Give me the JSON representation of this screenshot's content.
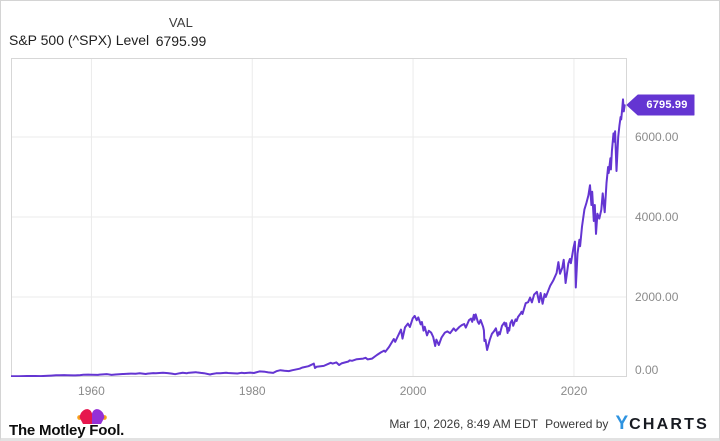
{
  "header": {
    "title": "S&P 500 (^SPX) Level",
    "col_label": "VAL",
    "value": "6795.99"
  },
  "chart_data": {
    "type": "line",
    "title": "S&P 500 (^SPX) Level",
    "xlabel": "",
    "ylabel": "",
    "xlim": [
      1950,
      2026.6
    ],
    "ylim": [
      0,
      7975
    ],
    "grid": true,
    "legend_position": "none",
    "x_ticks": [
      1960,
      1980,
      2000,
      2020
    ],
    "y_ticks": [
      {
        "value": 6000,
        "label": "6000.00"
      },
      {
        "value": 4000,
        "label": "4000.00"
      },
      {
        "value": 2000,
        "label": "2000.00"
      },
      {
        "value": 0,
        "label": "0.00"
      }
    ],
    "last_value_label": "6795.99",
    "series": [
      {
        "name": "S&P 500 (^SPX) Level",
        "points": [
          [
            1950,
            17
          ],
          [
            1951,
            21
          ],
          [
            1952,
            24
          ],
          [
            1952.6,
            25
          ],
          [
            1953,
            26
          ],
          [
            1953.7,
            23
          ],
          [
            1954,
            26
          ],
          [
            1954.6,
            31
          ],
          [
            1955,
            36
          ],
          [
            1955.6,
            42
          ],
          [
            1956,
            44
          ],
          [
            1956.6,
            48
          ],
          [
            1957,
            45
          ],
          [
            1957.75,
            39
          ],
          [
            1958,
            41
          ],
          [
            1958.6,
            47
          ],
          [
            1959,
            55
          ],
          [
            1959.6,
            59
          ],
          [
            1960,
            58
          ],
          [
            1960.8,
            53
          ],
          [
            1961,
            59
          ],
          [
            1961.9,
            72
          ],
          [
            1962,
            69
          ],
          [
            1962.5,
            53
          ],
          [
            1963,
            63
          ],
          [
            1963.9,
            75
          ],
          [
            1964,
            76
          ],
          [
            1964.9,
            84
          ],
          [
            1965,
            85
          ],
          [
            1965.5,
            81
          ],
          [
            1966,
            93
          ],
          [
            1966.75,
            74
          ],
          [
            1967,
            84
          ],
          [
            1967.7,
            97
          ],
          [
            1968,
            92
          ],
          [
            1968.9,
            108
          ],
          [
            1969.5,
            97
          ],
          [
            1970,
            86
          ],
          [
            1970.4,
            70
          ],
          [
            1971,
            95
          ],
          [
            1971.35,
            104
          ],
          [
            1971.85,
            92
          ],
          [
            1972,
            102
          ],
          [
            1972.95,
            119
          ],
          [
            1973.1,
            116
          ],
          [
            1973.6,
            102
          ],
          [
            1974,
            94
          ],
          [
            1974.75,
            63
          ],
          [
            1975,
            75
          ],
          [
            1975.5,
            92
          ],
          [
            1976,
            94
          ],
          [
            1976.75,
            105
          ],
          [
            1977,
            100
          ],
          [
            1978.15,
            87
          ],
          [
            1978.65,
            105
          ],
          [
            1979,
            97
          ],
          [
            1979.75,
            110
          ],
          [
            1980.2,
            100
          ],
          [
            1980.9,
            140
          ],
          [
            1981.6,
            130
          ],
          [
            1982,
            115
          ],
          [
            1982.6,
            103
          ],
          [
            1983,
            145
          ],
          [
            1983.5,
            170
          ],
          [
            1984,
            157
          ],
          [
            1984.55,
            148
          ],
          [
            1985,
            170
          ],
          [
            1985.9,
            207
          ],
          [
            1986.2,
            235
          ],
          [
            1987,
            270
          ],
          [
            1987.65,
            336
          ],
          [
            1987.8,
            225
          ],
          [
            1988,
            255
          ],
          [
            1988.9,
            278
          ],
          [
            1989.75,
            355
          ],
          [
            1990,
            335
          ],
          [
            1990.45,
            365
          ],
          [
            1990.8,
            300
          ],
          [
            1991.1,
            340
          ],
          [
            1991.95,
            388
          ],
          [
            1992.1,
            415
          ],
          [
            1992.4,
            405
          ],
          [
            1993,
            445
          ],
          [
            1993.8,
            460
          ],
          [
            1994.1,
            480
          ],
          [
            1994.35,
            440
          ],
          [
            1994.9,
            460
          ],
          [
            1995.5,
            550
          ],
          [
            1996,
            615
          ],
          [
            1996.4,
            660
          ],
          [
            1996.55,
            630
          ],
          [
            1997,
            750
          ],
          [
            1997.6,
            950
          ],
          [
            1997.78,
            880
          ],
          [
            1998,
            975
          ],
          [
            1998.5,
            1186
          ],
          [
            1998.68,
            960
          ],
          [
            1999,
            1240
          ],
          [
            1999.35,
            1335
          ],
          [
            1999.6,
            1250
          ],
          [
            1999.95,
            1465
          ],
          [
            2000.2,
            1527
          ],
          [
            2000.45,
            1420
          ],
          [
            2000.65,
            1490
          ],
          [
            2000.95,
            1315
          ],
          [
            2001.1,
            1375
          ],
          [
            2001.3,
            1160
          ],
          [
            2001.45,
            1255
          ],
          [
            2001.73,
            1040
          ],
          [
            2001.95,
            1155
          ],
          [
            2002.25,
            1107
          ],
          [
            2002.5,
            1000
          ],
          [
            2002.75,
            776
          ],
          [
            2002.9,
            935
          ],
          [
            2003.2,
            800
          ],
          [
            2003.55,
            990
          ],
          [
            2003.95,
            1110
          ],
          [
            2004.25,
            1140
          ],
          [
            2004.6,
            1095
          ],
          [
            2005.05,
            1215
          ],
          [
            2005.3,
            1155
          ],
          [
            2005.75,
            1250
          ],
          [
            2006.05,
            1295
          ],
          [
            2006.35,
            1325
          ],
          [
            2006.55,
            1235
          ],
          [
            2006.95,
            1420
          ],
          [
            2007.2,
            1460
          ],
          [
            2007.35,
            1380
          ],
          [
            2007.55,
            1555
          ],
          [
            2007.63,
            1430
          ],
          [
            2007.78,
            1565
          ],
          [
            2008.05,
            1380
          ],
          [
            2008.2,
            1330
          ],
          [
            2008.4,
            1425
          ],
          [
            2008.7,
            1255
          ],
          [
            2008.8,
            1165
          ],
          [
            2008.87,
            900
          ],
          [
            2009,
            930
          ],
          [
            2009.2,
            676
          ],
          [
            2009.55,
            940
          ],
          [
            2009.8,
            1080
          ],
          [
            2010.05,
            1140
          ],
          [
            2010.3,
            1217
          ],
          [
            2010.52,
            1030
          ],
          [
            2010.68,
            1120
          ],
          [
            2010.78,
            1065
          ],
          [
            2011.05,
            1280
          ],
          [
            2011.35,
            1363
          ],
          [
            2011.5,
            1270
          ],
          [
            2011.58,
            1345
          ],
          [
            2011.75,
            1099
          ],
          [
            2011.83,
            1225
          ],
          [
            2011.95,
            1160
          ],
          [
            2012.1,
            1350
          ],
          [
            2012.3,
            1420
          ],
          [
            2012.45,
            1280
          ],
          [
            2012.75,
            1440
          ],
          [
            2012.87,
            1400
          ],
          [
            2013.05,
            1500
          ],
          [
            2013.4,
            1595
          ],
          [
            2013.48,
            1630
          ],
          [
            2013.6,
            1575
          ],
          [
            2014,
            1845
          ],
          [
            2014.3,
            1870
          ],
          [
            2014.55,
            1985
          ],
          [
            2014.78,
            1865
          ],
          [
            2015.05,
            2060
          ],
          [
            2015.4,
            2130
          ],
          [
            2015.67,
            1870
          ],
          [
            2015.85,
            2100
          ],
          [
            2016.1,
            1829
          ],
          [
            2016.35,
            2075
          ],
          [
            2016.5,
            2000
          ],
          [
            2016.85,
            2180
          ],
          [
            2017.05,
            2280
          ],
          [
            2017.45,
            2420
          ],
          [
            2017.85,
            2600
          ],
          [
            2018.07,
            2872
          ],
          [
            2018.27,
            2580
          ],
          [
            2018.55,
            2735
          ],
          [
            2018.73,
            2930
          ],
          [
            2018.97,
            2351
          ],
          [
            2019.3,
            2835
          ],
          [
            2019.5,
            2950
          ],
          [
            2019.62,
            2845
          ],
          [
            2019.95,
            3230
          ],
          [
            2020.12,
            3386
          ],
          [
            2020.23,
            2237
          ],
          [
            2020.45,
            3080
          ],
          [
            2020.68,
            3430
          ],
          [
            2020.77,
            3270
          ],
          [
            2021,
            3760
          ],
          [
            2021.3,
            4185
          ],
          [
            2021.55,
            4350
          ],
          [
            2021.8,
            4540
          ],
          [
            2022,
            4796
          ],
          [
            2022.17,
            4300
          ],
          [
            2022.27,
            4630
          ],
          [
            2022.47,
            3900
          ],
          [
            2022.6,
            4300
          ],
          [
            2022.75,
            3577
          ],
          [
            2022.92,
            4080
          ],
          [
            2023.15,
            3960
          ],
          [
            2023.4,
            4180
          ],
          [
            2023.58,
            4590
          ],
          [
            2023.83,
            4117
          ],
          [
            2024.05,
            4850
          ],
          [
            2024.25,
            5250
          ],
          [
            2024.32,
            5100
          ],
          [
            2024.53,
            5470
          ],
          [
            2024.6,
            5190
          ],
          [
            2024.72,
            5650
          ],
          [
            2024.92,
            6090
          ],
          [
            2025.05,
            5880
          ],
          [
            2025.12,
            6144
          ],
          [
            2025.3,
            5150
          ],
          [
            2025.5,
            6000
          ],
          [
            2025.65,
            6280
          ],
          [
            2025.8,
            6500
          ],
          [
            2025.88,
            6440
          ],
          [
            2026,
            6700
          ],
          [
            2026.1,
            6940
          ],
          [
            2026.2,
            6640
          ],
          [
            2026.32,
            6795.99
          ]
        ]
      }
    ]
  },
  "colors": {
    "line": "#6435d2",
    "badge": "#6435d2",
    "ycharts_blue": "#2e93e0",
    "mf_red": "#e6174e",
    "mf_purple": "#9430d6",
    "mf_gold": "#f6a21c"
  },
  "footer": {
    "brand": "The Motley Fool.",
    "timestamp": "Mar 10, 2026, 8:49 AM EDT",
    "powered_by": "Powered by",
    "ycharts_y": "Y",
    "ycharts_rest": "CHARTS"
  }
}
